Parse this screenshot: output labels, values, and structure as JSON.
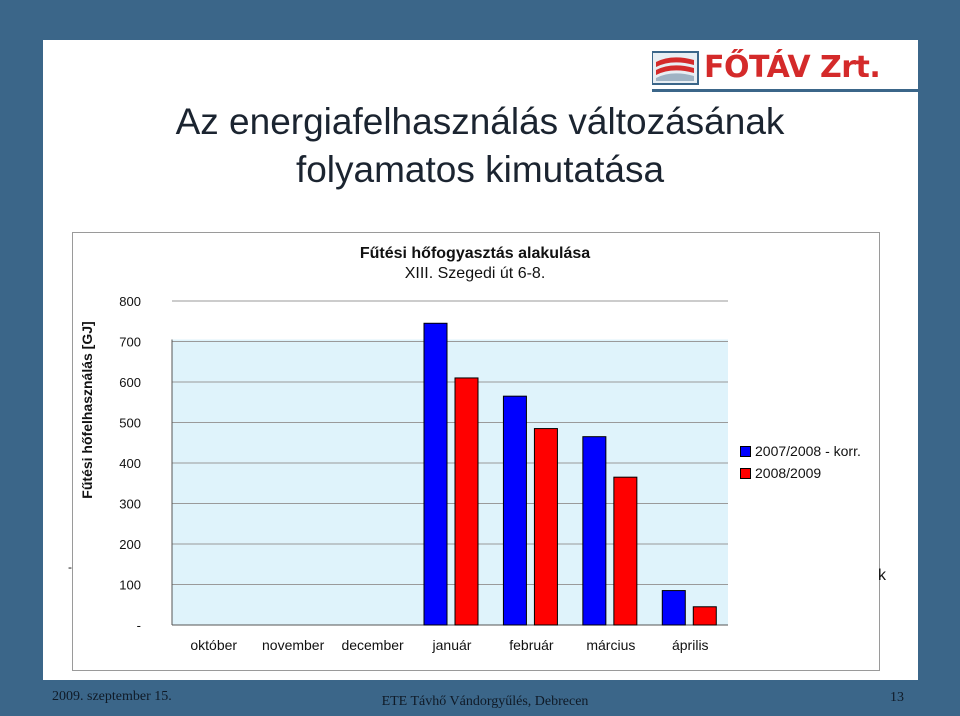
{
  "slide": {
    "logo_text": "FŐTÁV Zrt.",
    "title_line1": "Az energiafelhasználás változásának",
    "title_line2": "folyamatos kimutatása",
    "stray_text_right": "k",
    "stray_text_left": "-"
  },
  "footer": {
    "date": "2009. szeptember 15.",
    "event": "ETE Távhő Vándorgyűlés, Debrecen",
    "page": "13"
  },
  "colors": {
    "background": "#3b6689",
    "plot_area": "#dff3fb",
    "series_1": "#0000ff",
    "series_2": "#ff0000",
    "logo_red": "#d42a2a"
  },
  "chart_data": {
    "type": "bar",
    "title": "Fűtési hőfogyasztás alakulása",
    "subtitle": "XIII. Szegedi út 6-8.",
    "ylabel": "Fűtési hőfelhasználás [GJ]",
    "xlabel": "",
    "ylim": [
      0,
      800
    ],
    "yticks": [
      "-",
      "100",
      "200",
      "300",
      "400",
      "500",
      "600",
      "700",
      "800"
    ],
    "grid": true,
    "legend_position": "right",
    "categories": [
      "október",
      "november",
      "december",
      "január",
      "február",
      "március",
      "április"
    ],
    "series": [
      {
        "name": "2007/2008 - korr.",
        "color": "#0000ff",
        "values": [
          0,
          0,
          0,
          745,
          565,
          465,
          85
        ]
      },
      {
        "name": "2008/2009",
        "color": "#ff0000",
        "values": [
          0,
          0,
          0,
          610,
          485,
          365,
          45
        ]
      }
    ]
  }
}
